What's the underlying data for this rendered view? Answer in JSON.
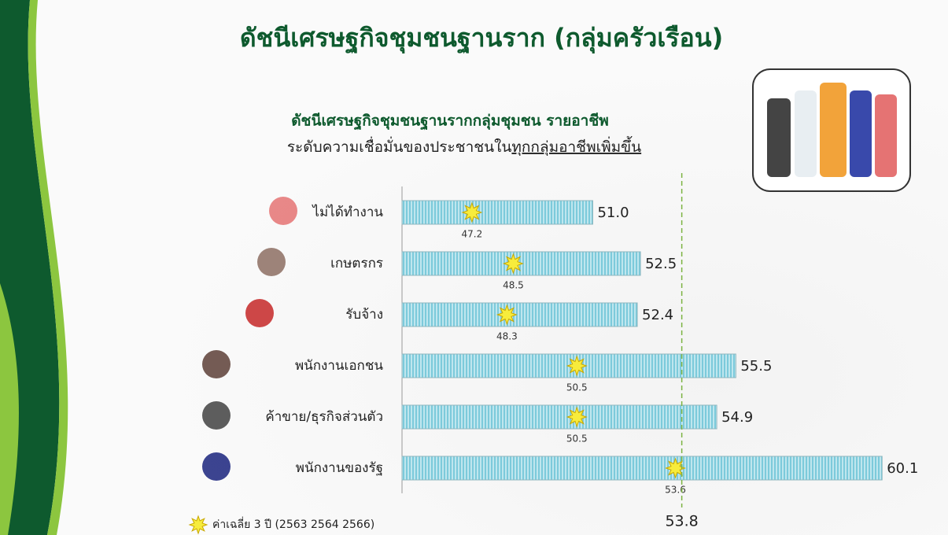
{
  "chart_data": {
    "type": "bar",
    "orientation": "horizontal",
    "title": "ดัชนีเศรษฐกิจชุมชนฐานราก (กลุ่มครัวเรือน)",
    "subtitle": "ดัชนีเศรษฐกิจชุมชนฐานรากกลุ่มชุมชน รายอาชีพ",
    "subtitle2": [
      "ระดับความเชื่อมั่นของประชาชนใน",
      "ทุกกลุ่มอาชีพเพิ่มขึ้น"
    ],
    "categories": [
      "ไม่ได้ทำงาน",
      "เกษตรกร",
      "รับจ้าง",
      "พนักงานเอกชน",
      "ค้าขาย/ธุรกิจส่วนตัว",
      "พนักงานของรัฐ"
    ],
    "series": [
      {
        "color": "#8fd3e2",
        "values": [
          51.0,
          52.5,
          52.4,
          55.5,
          54.9,
          60.1
        ],
        "value_labels": [
          "51.0",
          "52.5",
          "52.4",
          "55.5",
          "54.9",
          "60.1"
        ]
      },
      {
        "name": "ค่าเฉลี่ย 3 ปี (2563 2564 2566)",
        "color": "#f7ec3c",
        "marker": "star",
        "values": [
          47.2,
          48.5,
          48.3,
          50.5,
          50.5,
          53.6
        ]
      }
    ],
    "reference_line": {
      "value": 53.8,
      "color": "#7cb342"
    },
    "xlim": [
      45,
      62
    ]
  }
}
